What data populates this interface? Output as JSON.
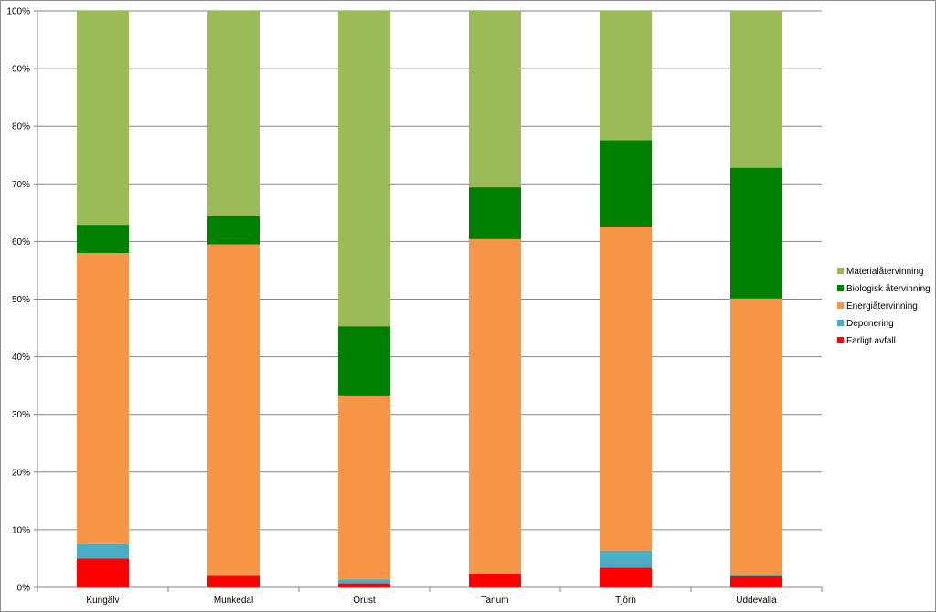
{
  "chart_data": {
    "type": "bar",
    "stacked": true,
    "percent": true,
    "categories": [
      "Kungälv",
      "Munkedal",
      "Orust",
      "Tanum",
      "Tjörn",
      "Uddevalla"
    ],
    "series": [
      {
        "name": "Farligt avfall",
        "color": "#ff0000",
        "values": [
          5.0,
          2.0,
          0.7,
          2.4,
          3.4,
          1.9
        ]
      },
      {
        "name": "Deponering",
        "color": "#4bacc6",
        "values": [
          2.5,
          0.0,
          0.7,
          0.0,
          3.0,
          0.2
        ]
      },
      {
        "name": "Energiåtervinning",
        "color": "#f79646",
        "values": [
          50.5,
          57.5,
          31.9,
          58.0,
          56.2,
          48.0
        ]
      },
      {
        "name": "Biologisk återvinning",
        "color": "#008000",
        "values": [
          4.9,
          4.9,
          12.0,
          9.0,
          15.0,
          22.7
        ]
      },
      {
        "name": "Materialåtervinning",
        "color": "#9bbb59",
        "values": [
          37.1,
          35.6,
          54.7,
          30.6,
          22.4,
          27.2
        ]
      }
    ],
    "legend_order": [
      "Materialåtervinning",
      "Biologisk återvinning",
      "Energiåtervinning",
      "Deponering",
      "Farligt avfall"
    ],
    "y_ticks": [
      "0%",
      "10%",
      "20%",
      "30%",
      "40%",
      "50%",
      "60%",
      "70%",
      "80%",
      "90%",
      "100%"
    ],
    "ylim": [
      0,
      100
    ],
    "grid": true,
    "legend_position": "right"
  }
}
